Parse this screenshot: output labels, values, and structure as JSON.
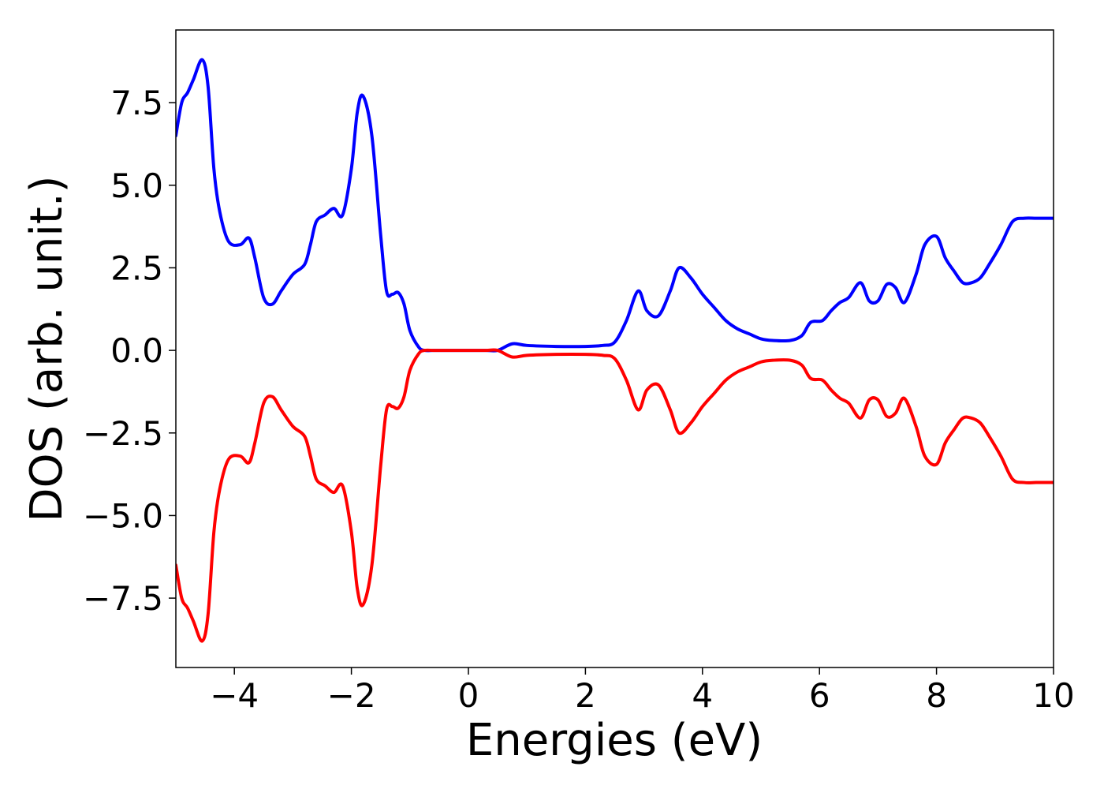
{
  "chart_data": {
    "type": "line",
    "title": "",
    "xlabel": "Energies (eV)",
    "ylabel": "DOS (arb. unit.)",
    "xlim": [
      -5,
      10
    ],
    "ylim": [
      -9.6,
      9.7
    ],
    "grid": false,
    "legend": "none",
    "xticks": [
      {
        "value": -4,
        "label": "−4"
      },
      {
        "value": -2,
        "label": "−2"
      },
      {
        "value": 0,
        "label": "0"
      },
      {
        "value": 2,
        "label": "2"
      },
      {
        "value": 4,
        "label": "4"
      },
      {
        "value": 6,
        "label": "6"
      },
      {
        "value": 8,
        "label": "8"
      },
      {
        "value": 10,
        "label": "10"
      }
    ],
    "yticks": [
      {
        "value": -7.5,
        "label": "−7.5"
      },
      {
        "value": -5.0,
        "label": "−5.0"
      },
      {
        "value": -2.5,
        "label": "−2.5"
      },
      {
        "value": 0.0,
        "label": "0.0"
      },
      {
        "value": 2.5,
        "label": "2.5"
      },
      {
        "value": 5.0,
        "label": "5.0"
      },
      {
        "value": 7.5,
        "label": "7.5"
      }
    ],
    "series": [
      {
        "color": "#0000ff",
        "x": [
          -5.0,
          -4.9,
          -4.8,
          -4.7,
          -4.55,
          -4.45,
          -4.35,
          -4.25,
          -4.1,
          -3.9,
          -3.75,
          -3.65,
          -3.5,
          -3.35,
          -3.2,
          -3.0,
          -2.8,
          -2.7,
          -2.6,
          -2.45,
          -2.3,
          -2.15,
          -2.0,
          -1.9,
          -1.8,
          -1.65,
          -1.5,
          -1.4,
          -1.3,
          -1.2,
          -1.1,
          -1.0,
          -0.85,
          -0.75,
          -0.6,
          -0.45,
          -0.3,
          0.0,
          0.3,
          0.5,
          0.75,
          1.0,
          1.5,
          2.0,
          2.3,
          2.5,
          2.7,
          2.9,
          3.05,
          3.25,
          3.45,
          3.6,
          3.8,
          4.0,
          4.2,
          4.4,
          4.6,
          4.8,
          5.0,
          5.2,
          5.5,
          5.7,
          5.85,
          6.05,
          6.2,
          6.35,
          6.5,
          6.7,
          6.85,
          7.0,
          7.15,
          7.3,
          7.45,
          7.65,
          7.8,
          8.0,
          8.15,
          8.3,
          8.45,
          8.6,
          8.75,
          8.9,
          9.1,
          9.3,
          9.5,
          9.7,
          9.9,
          10.0
        ],
        "y": [
          6.5,
          7.5,
          7.8,
          8.2,
          8.8,
          8.0,
          5.5,
          4.2,
          3.3,
          3.2,
          3.4,
          2.8,
          1.6,
          1.4,
          1.8,
          2.3,
          2.6,
          3.2,
          3.9,
          4.1,
          4.3,
          4.1,
          5.5,
          7.2,
          7.7,
          6.5,
          3.5,
          1.8,
          1.7,
          1.75,
          1.4,
          0.6,
          0.1,
          0.0,
          0.0,
          0.0,
          0.0,
          0.0,
          0.0,
          0.0,
          0.2,
          0.15,
          0.12,
          0.12,
          0.15,
          0.25,
          0.9,
          1.8,
          1.2,
          1.05,
          1.8,
          2.5,
          2.2,
          1.7,
          1.3,
          0.9,
          0.65,
          0.5,
          0.35,
          0.3,
          0.3,
          0.45,
          0.85,
          0.9,
          1.2,
          1.45,
          1.6,
          2.05,
          1.5,
          1.5,
          2.0,
          1.9,
          1.45,
          2.3,
          3.2,
          3.45,
          2.8,
          2.4,
          2.05,
          2.05,
          2.2,
          2.6,
          3.2,
          3.9,
          4.0,
          4.0,
          4.0,
          4.0
        ]
      },
      {
        "color": "#ff0000",
        "x": [
          -5.0,
          -4.9,
          -4.8,
          -4.7,
          -4.55,
          -4.45,
          -4.35,
          -4.25,
          -4.1,
          -3.9,
          -3.75,
          -3.65,
          -3.5,
          -3.35,
          -3.2,
          -3.0,
          -2.8,
          -2.7,
          -2.6,
          -2.45,
          -2.3,
          -2.15,
          -2.0,
          -1.9,
          -1.8,
          -1.65,
          -1.5,
          -1.4,
          -1.3,
          -1.2,
          -1.1,
          -1.0,
          -0.85,
          -0.75,
          -0.6,
          -0.45,
          -0.3,
          0.0,
          0.3,
          0.5,
          0.75,
          1.0,
          1.5,
          2.0,
          2.3,
          2.5,
          2.7,
          2.9,
          3.05,
          3.25,
          3.45,
          3.6,
          3.8,
          4.0,
          4.2,
          4.4,
          4.6,
          4.8,
          5.0,
          5.2,
          5.5,
          5.7,
          5.85,
          6.05,
          6.2,
          6.35,
          6.5,
          6.7,
          6.85,
          7.0,
          7.15,
          7.3,
          7.45,
          7.65,
          7.8,
          8.0,
          8.15,
          8.3,
          8.45,
          8.6,
          8.75,
          8.9,
          9.1,
          9.3,
          9.5,
          9.7,
          9.9,
          10.0
        ],
        "y": [
          -6.5,
          -7.5,
          -7.8,
          -8.2,
          -8.8,
          -8.0,
          -5.5,
          -4.2,
          -3.3,
          -3.2,
          -3.4,
          -2.8,
          -1.6,
          -1.4,
          -1.8,
          -2.3,
          -2.6,
          -3.2,
          -3.9,
          -4.1,
          -4.3,
          -4.1,
          -5.5,
          -7.2,
          -7.7,
          -6.5,
          -3.5,
          -1.8,
          -1.7,
          -1.75,
          -1.4,
          -0.6,
          -0.1,
          0.0,
          0.0,
          0.0,
          0.0,
          0.0,
          0.0,
          0.0,
          -0.2,
          -0.15,
          -0.12,
          -0.12,
          -0.15,
          -0.25,
          -0.9,
          -1.8,
          -1.2,
          -1.05,
          -1.8,
          -2.5,
          -2.2,
          -1.7,
          -1.3,
          -0.9,
          -0.65,
          -0.5,
          -0.35,
          -0.3,
          -0.3,
          -0.45,
          -0.85,
          -0.9,
          -1.2,
          -1.45,
          -1.6,
          -2.05,
          -1.5,
          -1.5,
          -2.0,
          -1.9,
          -1.45,
          -2.3,
          -3.2,
          -3.45,
          -2.8,
          -2.4,
          -2.05,
          -2.05,
          -2.2,
          -2.6,
          -3.2,
          -3.9,
          -4.0,
          -4.0,
          -4.0,
          -4.0
        ]
      }
    ]
  }
}
